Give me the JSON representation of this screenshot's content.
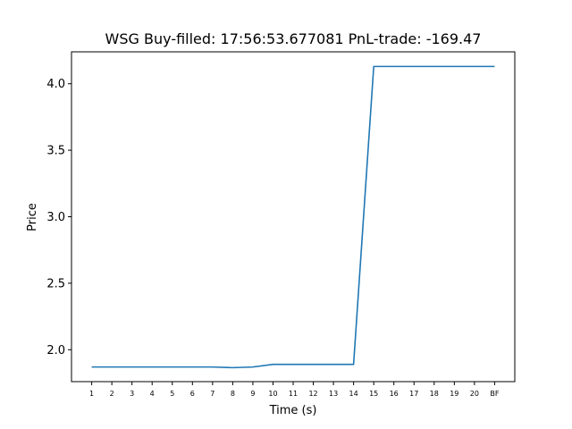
{
  "chart_data": {
    "type": "line",
    "title": "WSG  Buy-filled:  17:56:53.677081  PnL-trade:  -169.47",
    "xlabel": "Time (s)",
    "ylabel": "Price",
    "categories": [
      "1",
      "2",
      "3",
      "4",
      "5",
      "6",
      "7",
      "8",
      "9",
      "10",
      "11",
      "12",
      "13",
      "14",
      "15",
      "16",
      "17",
      "18",
      "19",
      "20",
      "BF"
    ],
    "series": [
      {
        "values": [
          1.87,
          1.87,
          1.87,
          1.87,
          1.87,
          1.87,
          1.87,
          1.865,
          1.87,
          1.89,
          1.89,
          1.89,
          1.89,
          1.89,
          4.13,
          4.13,
          4.13,
          4.13,
          4.13,
          4.13,
          4.13
        ],
        "color": "#1f77b4"
      }
    ],
    "ylim": [
      1.76,
      4.24
    ],
    "yticks": [
      "2.0",
      "2.5",
      "3.0",
      "3.5",
      "4.0"
    ],
    "grid": false,
    "legend": "none"
  }
}
